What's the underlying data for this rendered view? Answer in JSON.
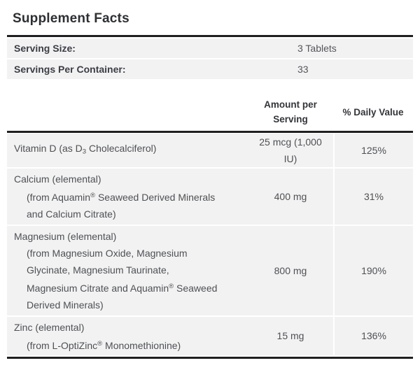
{
  "title": "Supplement Facts",
  "colors": {
    "row_background": "#f2f2f2",
    "rule": "#1f2022",
    "text": "#4e5055"
  },
  "serving": {
    "rows": [
      {
        "label": "Serving Size:",
        "value": "3 Tablets"
      },
      {
        "label": "Servings Per Container:",
        "value": "33"
      }
    ]
  },
  "table": {
    "headers": {
      "amount": "Amount per Serving",
      "daily_value": "% Daily Value"
    },
    "rows": [
      {
        "name": [
          {
            "t": "Vitamin D (as D"
          },
          {
            "t": "3",
            "s": "sub"
          },
          {
            "t": " Cholecalciferol)"
          }
        ],
        "details": [],
        "amount": "25 mcg (1,000 IU)",
        "daily_value": "125%"
      },
      {
        "name": [
          {
            "t": "Calcium (elemental)"
          }
        ],
        "details": [
          [
            {
              "t": "(from Aquamin"
            },
            {
              "t": "®",
              "s": "sup"
            },
            {
              "t": " Seaweed Derived Minerals"
            }
          ],
          [
            {
              "t": "and Calcium Citrate)"
            }
          ]
        ],
        "amount": "400 mg",
        "daily_value": "31%"
      },
      {
        "name": [
          {
            "t": "Magnesium (elemental)"
          }
        ],
        "details": [
          [
            {
              "t": "(from Magnesium Oxide, Magnesium"
            }
          ],
          [
            {
              "t": "Glycinate, Magnesium Taurinate,"
            }
          ],
          [
            {
              "t": "Magnesium Citrate and Aquamin"
            },
            {
              "t": "®",
              "s": "sup"
            },
            {
              "t": " Seaweed"
            }
          ],
          [
            {
              "t": "Derived Minerals)"
            }
          ]
        ],
        "amount": "800 mg",
        "daily_value": "190%"
      },
      {
        "name": [
          {
            "t": "Zinc (elemental)"
          }
        ],
        "details": [
          [
            {
              "t": "(from L-OptiZinc"
            },
            {
              "t": "®",
              "s": "sup"
            },
            {
              "t": " Monomethionine)"
            }
          ]
        ],
        "amount": "15 mg",
        "daily_value": "136%"
      }
    ]
  }
}
